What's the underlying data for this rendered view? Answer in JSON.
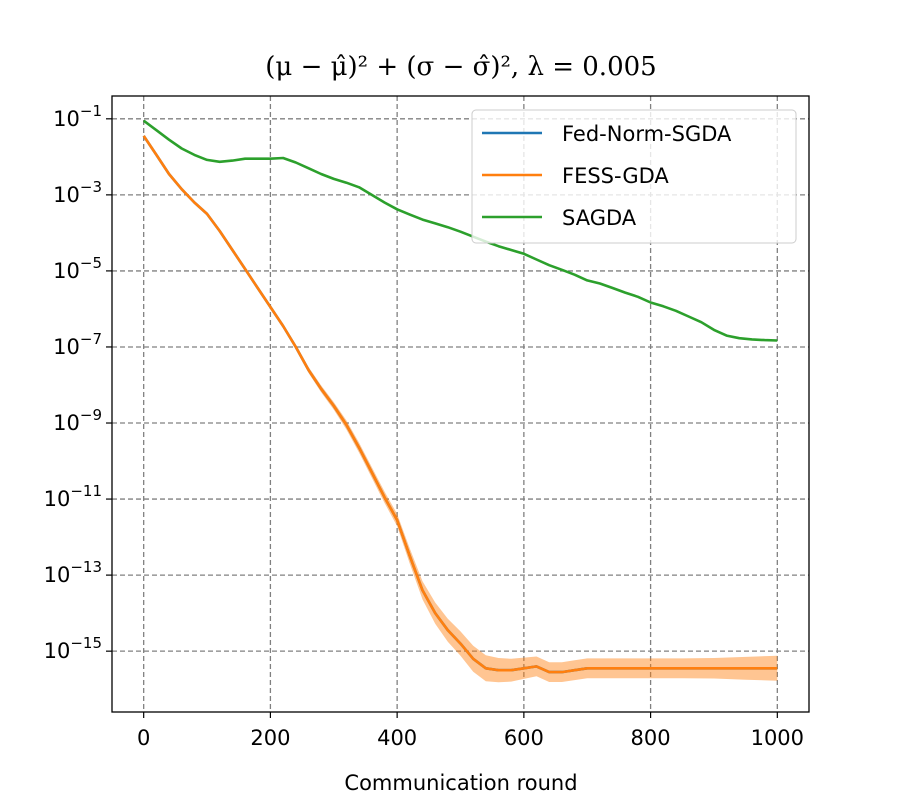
{
  "chart_data": {
    "type": "line",
    "title": "(μ − μ̂)² + (σ − σ̂)², λ = 0.005",
    "xlabel": "Communication round",
    "ylabel": "",
    "yscale": "log",
    "xlim": [
      -50,
      1050
    ],
    "ylim_exp": [
      -16.6,
      -0.4
    ],
    "x_ticks": [
      {
        "value": 0,
        "label": "0"
      },
      {
        "value": 200,
        "label": "200"
      },
      {
        "value": 400,
        "label": "400"
      },
      {
        "value": 600,
        "label": "600"
      },
      {
        "value": 800,
        "label": "800"
      },
      {
        "value": 1000,
        "label": "1000"
      }
    ],
    "y_ticks": [
      {
        "exp": -1,
        "base": "10",
        "sup": "−1"
      },
      {
        "exp": -3,
        "base": "10",
        "sup": "−3"
      },
      {
        "exp": -5,
        "base": "10",
        "sup": "−5"
      },
      {
        "exp": -7,
        "base": "10",
        "sup": "−7"
      },
      {
        "exp": -9,
        "base": "10",
        "sup": "−9"
      },
      {
        "exp": -11,
        "base": "10",
        "sup": "−11"
      },
      {
        "exp": -13,
        "base": "10",
        "sup": "−13"
      },
      {
        "exp": -15,
        "base": "10",
        "sup": "−15"
      }
    ],
    "grid": true,
    "legend_position": "top-right",
    "series": [
      {
        "name": "Fed-Norm-SGDA",
        "color": "#1f77b4",
        "x": [
          0,
          20,
          40,
          60,
          80,
          100,
          120,
          140,
          160,
          180,
          200,
          220,
          240,
          260,
          280,
          300,
          320,
          340,
          360,
          380,
          400,
          420,
          440,
          460,
          480,
          500,
          520,
          540,
          560,
          580,
          600,
          620,
          640,
          660,
          680,
          700,
          750,
          800,
          850,
          900,
          950,
          1000
        ],
        "log10_y": [
          -1.45,
          -1.95,
          -2.45,
          -2.85,
          -3.2,
          -3.5,
          -3.95,
          -4.45,
          -4.95,
          -5.45,
          -5.95,
          -6.45,
          -7.0,
          -7.6,
          -8.1,
          -8.55,
          -9.05,
          -9.65,
          -10.3,
          -10.95,
          -11.55,
          -12.5,
          -13.4,
          -14.0,
          -14.45,
          -14.8,
          -15.2,
          -15.45,
          -15.5,
          -15.5,
          -15.45,
          -15.4,
          -15.55,
          -15.55,
          -15.5,
          -15.45,
          -15.45,
          -15.45,
          -15.45,
          -15.45,
          -15.45,
          -15.45
        ]
      },
      {
        "name": "FESS-GDA",
        "color": "#ff7f0e",
        "band_halfwidth": [
          0.02,
          0.02,
          0.02,
          0.02,
          0.03,
          0.03,
          0.03,
          0.03,
          0.04,
          0.05,
          0.05,
          0.06,
          0.07,
          0.08,
          0.09,
          0.1,
          0.12,
          0.13,
          0.14,
          0.15,
          0.16,
          0.2,
          0.24,
          0.28,
          0.3,
          0.32,
          0.34,
          0.34,
          0.32,
          0.3,
          0.28,
          0.26,
          0.26,
          0.26,
          0.26,
          0.26,
          0.26,
          0.26,
          0.26,
          0.27,
          0.3,
          0.33
        ],
        "x": [
          0,
          20,
          40,
          60,
          80,
          100,
          120,
          140,
          160,
          180,
          200,
          220,
          240,
          260,
          280,
          300,
          320,
          340,
          360,
          380,
          400,
          420,
          440,
          460,
          480,
          500,
          520,
          540,
          560,
          580,
          600,
          620,
          640,
          660,
          680,
          700,
          750,
          800,
          850,
          900,
          950,
          1000
        ],
        "log10_y": [
          -1.45,
          -1.95,
          -2.45,
          -2.85,
          -3.2,
          -3.5,
          -3.95,
          -4.45,
          -4.95,
          -5.45,
          -5.95,
          -6.45,
          -7.0,
          -7.6,
          -8.1,
          -8.55,
          -9.05,
          -9.65,
          -10.3,
          -10.95,
          -11.55,
          -12.5,
          -13.4,
          -14.0,
          -14.45,
          -14.8,
          -15.2,
          -15.45,
          -15.5,
          -15.5,
          -15.45,
          -15.4,
          -15.55,
          -15.55,
          -15.5,
          -15.45,
          -15.45,
          -15.45,
          -15.45,
          -15.45,
          -15.45,
          -15.45
        ]
      },
      {
        "name": "SAGDA",
        "color": "#2ca02c",
        "x": [
          0,
          20,
          40,
          60,
          80,
          100,
          120,
          140,
          160,
          180,
          200,
          220,
          240,
          260,
          280,
          300,
          320,
          340,
          360,
          380,
          400,
          420,
          440,
          460,
          480,
          500,
          520,
          540,
          560,
          580,
          600,
          620,
          640,
          660,
          680,
          700,
          720,
          740,
          760,
          780,
          800,
          820,
          840,
          860,
          880,
          900,
          920,
          940,
          960,
          980,
          1000
        ],
        "log10_y": [
          -1.05,
          -1.3,
          -1.55,
          -1.78,
          -1.95,
          -2.08,
          -2.13,
          -2.1,
          -2.05,
          -2.05,
          -2.05,
          -2.03,
          -2.15,
          -2.3,
          -2.45,
          -2.58,
          -2.68,
          -2.8,
          -3.0,
          -3.2,
          -3.38,
          -3.52,
          -3.65,
          -3.75,
          -3.85,
          -3.97,
          -4.1,
          -4.23,
          -4.35,
          -4.45,
          -4.55,
          -4.7,
          -4.85,
          -4.97,
          -5.1,
          -5.25,
          -5.33,
          -5.45,
          -5.57,
          -5.68,
          -5.83,
          -5.93,
          -6.05,
          -6.2,
          -6.35,
          -6.55,
          -6.7,
          -6.77,
          -6.8,
          -6.82,
          -6.83
        ]
      }
    ]
  }
}
